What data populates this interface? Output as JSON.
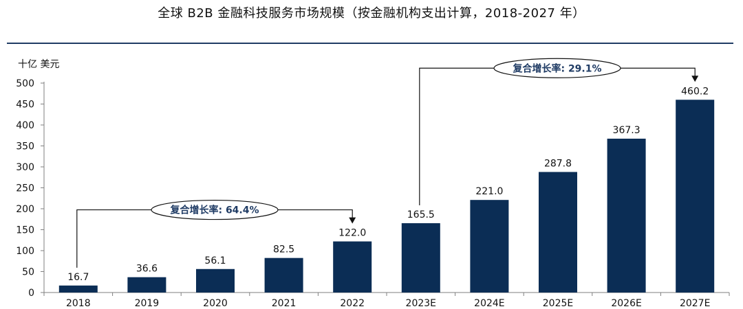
{
  "page": {
    "title": "全球 B2B 金融科技服务市场规模（按金融机构支出计算，2018-2027 年）"
  },
  "chart_data": {
    "type": "bar",
    "title": "全球 B2B 金融科技服务市场规模（按金融机构支出计算，2018-2027 年）",
    "ylabel": "十亿 美元",
    "xlabel": "",
    "ylim": [
      0,
      500
    ],
    "yticks": [
      0,
      50,
      100,
      150,
      200,
      250,
      300,
      350,
      400,
      450,
      500
    ],
    "categories": [
      "2018",
      "2019",
      "2020",
      "2021",
      "2022",
      "2023E",
      "2024E",
      "2025E",
      "2026E",
      "2027E"
    ],
    "values": [
      16.7,
      36.6,
      56.1,
      82.5,
      122.0,
      165.5,
      221.0,
      287.8,
      367.3,
      460.2
    ],
    "value_labels": [
      "16.7",
      "36.6",
      "56.1",
      "82.5",
      "122.0",
      "165.5",
      "221.0",
      "287.8",
      "367.3",
      "460.2"
    ],
    "bar_color": "#0b2d55",
    "grid": false,
    "annotations": [
      {
        "label": "复合增长率: 64.4%",
        "from_category": "2018",
        "to_category": "2022"
      },
      {
        "label": "复合增长率: 29.1%",
        "from_category": "2023E",
        "to_category": "2027E"
      }
    ]
  }
}
